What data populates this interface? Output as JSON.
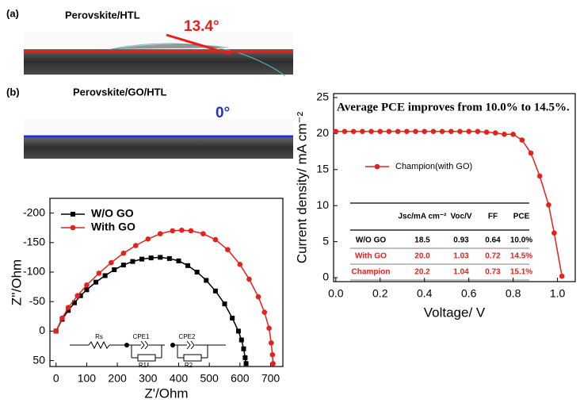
{
  "images": [
    {
      "label": "(a)",
      "title": "Perovskite/HTL",
      "angle": "13.4°"
    },
    {
      "label": "(b)",
      "title": "Perovskite/GO/HTL",
      "angle": "0°"
    }
  ],
  "chart_data": [
    {
      "type": "line",
      "xlabel": "Z'/Ohm",
      "ylabel": "Z''/Ohm",
      "xlim": [
        -20,
        740
      ],
      "xticks": [
        0,
        100,
        200,
        300,
        400,
        500,
        600,
        700
      ],
      "ylim": [
        60,
        -225
      ],
      "yticks": [
        -200,
        -150,
        -100,
        -50,
        0,
        50
      ],
      "legend": "upper left",
      "series": [
        {
          "name": "W/O GO",
          "color": "#000000",
          "marker": "square",
          "x": [
            0,
            20,
            40,
            60,
            80,
            100,
            130,
            160,
            190,
            220,
            250,
            280,
            310,
            340,
            370,
            400,
            430,
            460,
            490,
            520,
            550,
            575,
            595,
            605,
            612,
            617,
            620
          ],
          "values": [
            0,
            -20,
            -35,
            -48,
            -60,
            -70,
            -83,
            -94,
            -104,
            -112,
            -118,
            -122,
            -124,
            -125,
            -123,
            -119,
            -111,
            -100,
            -86,
            -68,
            -46,
            -22,
            0,
            15,
            30,
            45,
            55
          ]
        },
        {
          "name": "With GO",
          "color": "#e8201a",
          "marker": "circle",
          "x": [
            0,
            20,
            40,
            70,
            100,
            140,
            180,
            220,
            260,
            300,
            340,
            380,
            410,
            440,
            480,
            520,
            560,
            600,
            630,
            660,
            680,
            695,
            702,
            706,
            708
          ],
          "values": [
            0,
            -22,
            -40,
            -60,
            -78,
            -98,
            -116,
            -132,
            -145,
            -156,
            -165,
            -170,
            -171,
            -170,
            -165,
            -155,
            -138,
            -113,
            -88,
            -58,
            -32,
            -5,
            20,
            40,
            55
          ]
        }
      ],
      "circuit_labels": [
        "Rs",
        "CPE1",
        "R1",
        "CPE2",
        "R2"
      ]
    },
    {
      "type": "line",
      "xlabel": "Voltage/ V",
      "ylabel": "Current density/ mA cm⁻²",
      "annotation": "Average PCE improves from 10.0% to 14.5%.",
      "xlim": [
        -0.01,
        1.08
      ],
      "xticks": [
        {
          "value": 0,
          "label": "0.0"
        },
        0.2,
        0.4,
        0.6,
        0.8,
        {
          "value": 1,
          "label": "1.0"
        }
      ],
      "ylim": [
        -0.55,
        25.55
      ],
      "yticks": [
        0,
        5,
        10,
        15,
        20,
        25
      ],
      "legend": "center left",
      "series": [
        {
          "name": "Champion(with GO)",
          "color": "#e8201a",
          "marker": "circle",
          "x": [
            0,
            0.04,
            0.08,
            0.12,
            0.16,
            0.2,
            0.24,
            0.28,
            0.32,
            0.36,
            0.4,
            0.44,
            0.48,
            0.52,
            0.56,
            0.6,
            0.64,
            0.68,
            0.72,
            0.76,
            0.8,
            0.84,
            0.88,
            0.92,
            0.96,
            0.985,
            1.02
          ],
          "values": [
            20.3,
            20.3,
            20.3,
            20.3,
            20.3,
            20.3,
            20.3,
            20.3,
            20.3,
            20.3,
            20.3,
            20.3,
            20.3,
            20.3,
            20.3,
            20.3,
            20.3,
            20.2,
            20.1,
            19.9,
            19.9,
            19.1,
            17.3,
            14.1,
            10.1,
            6.2,
            0.2
          ]
        }
      ],
      "table": {
        "header": [
          "Jsc/mA cm⁻²",
          "Voc/V",
          "FF",
          "PCE"
        ],
        "rows": [
          [
            "W/O GO",
            "18.5",
            "0.93",
            "0.64",
            "10.0%"
          ],
          [
            "With GO",
            "20.0",
            "1.03",
            "0.72",
            "14.5%"
          ],
          [
            "Champion",
            "20.2",
            "1.04",
            "0.73",
            "15.1%"
          ]
        ],
        "row_colors": [
          "#000000",
          "#e8201a",
          "#e8201a"
        ]
      }
    }
  ]
}
